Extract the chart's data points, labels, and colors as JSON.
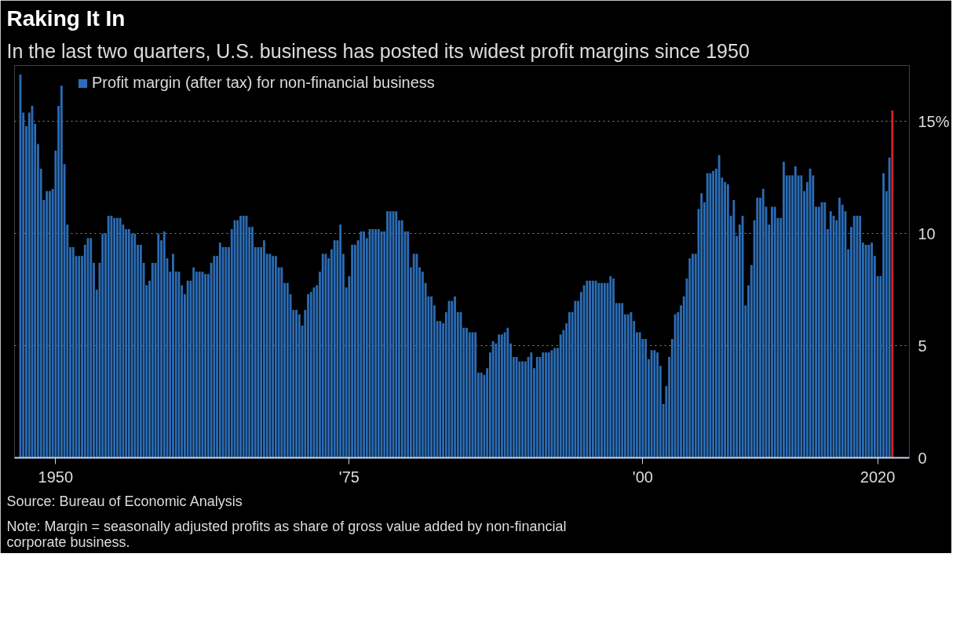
{
  "chart_data": {
    "type": "bar",
    "title": "Raking It In",
    "subtitle": "In the last two quarters, U.S. business has posted its widest profit margins since 1950",
    "annotations": [
      "Source: Bureau of Economic Analysis",
      "Note: Margin = seasonally adjusted profits as share of gross value added by non-financial corporate business."
    ],
    "xlim": [
      1946.5,
      2022.7
    ],
    "xticks": [
      {
        "value": 1950,
        "label": "1950"
      },
      {
        "value": 1975,
        "label": "'75"
      },
      {
        "value": 2000,
        "label": "'00"
      },
      2020
    ],
    "ylim": [
      0,
      17.5
    ],
    "yticks": [
      0,
      5,
      10,
      {
        "value": 15,
        "label": "15%"
      }
    ],
    "grid": "y",
    "legend": "top left",
    "series": [
      {
        "name": "Profit margin (after tax) for non-financial business",
        "color": "#2b6cb5",
        "x": [
          1947,
          1947.25,
          1947.5,
          1947.75,
          1948,
          1948.25,
          1948.5,
          1948.75,
          1949,
          1949.25,
          1949.5,
          1949.75,
          1950,
          1950.25,
          1950.5,
          1950.75,
          1951,
          1951.25,
          1951.5,
          1951.75,
          1952,
          1952.25,
          1952.5,
          1952.75,
          1953,
          1953.25,
          1953.5,
          1953.75,
          1954,
          1954.25,
          1954.5,
          1954.75,
          1955,
          1955.25,
          1955.5,
          1955.75,
          1956,
          1956.25,
          1956.5,
          1956.75,
          1957,
          1957.25,
          1957.5,
          1957.75,
          1958,
          1958.25,
          1958.5,
          1958.75,
          1959,
          1959.25,
          1959.5,
          1959.75,
          1960,
          1960.25,
          1960.5,
          1960.75,
          1961,
          1961.25,
          1961.5,
          1961.75,
          1962,
          1962.25,
          1962.5,
          1962.75,
          1963,
          1963.25,
          1963.5,
          1963.75,
          1964,
          1964.25,
          1964.5,
          1964.75,
          1965,
          1965.25,
          1965.5,
          1965.75,
          1966,
          1966.25,
          1966.5,
          1966.75,
          1967,
          1967.25,
          1967.5,
          1967.75,
          1968,
          1968.25,
          1968.5,
          1968.75,
          1969,
          1969.25,
          1969.5,
          1969.75,
          1970,
          1970.25,
          1970.5,
          1970.75,
          1971,
          1971.25,
          1971.5,
          1971.75,
          1972,
          1972.25,
          1972.5,
          1972.75,
          1973,
          1973.25,
          1973.5,
          1973.75,
          1974,
          1974.25,
          1974.5,
          1974.75,
          1975,
          1975.25,
          1975.5,
          1975.75,
          1976,
          1976.25,
          1976.5,
          1976.75,
          1977,
          1977.25,
          1977.5,
          1977.75,
          1978,
          1978.25,
          1978.5,
          1978.75,
          1979,
          1979.25,
          1979.5,
          1979.75,
          1980,
          1980.25,
          1980.5,
          1980.75,
          1981,
          1981.25,
          1981.5,
          1981.75,
          1982,
          1982.25,
          1982.5,
          1982.75,
          1983,
          1983.25,
          1983.5,
          1983.75,
          1984,
          1984.25,
          1984.5,
          1984.75,
          1985,
          1985.25,
          1985.5,
          1985.75,
          1986,
          1986.25,
          1986.5,
          1986.75,
          1987,
          1987.25,
          1987.5,
          1987.75,
          1988,
          1988.25,
          1988.5,
          1988.75,
          1989,
          1989.25,
          1989.5,
          1989.75,
          1990,
          1990.25,
          1990.5,
          1990.75,
          1991,
          1991.25,
          1991.5,
          1991.75,
          1992,
          1992.25,
          1992.5,
          1992.75,
          1993,
          1993.25,
          1993.5,
          1993.75,
          1994,
          1994.25,
          1994.5,
          1994.75,
          1995,
          1995.25,
          1995.5,
          1995.75,
          1996,
          1996.25,
          1996.5,
          1996.75,
          1997,
          1997.25,
          1997.5,
          1997.75,
          1998,
          1998.25,
          1998.5,
          1998.75,
          1999,
          1999.25,
          1999.5,
          1999.75,
          2000,
          2000.25,
          2000.5,
          2000.75,
          2001,
          2001.25,
          2001.5,
          2001.75,
          2002,
          2002.25,
          2002.5,
          2002.75,
          2003,
          2003.25,
          2003.5,
          2003.75,
          2004,
          2004.25,
          2004.5,
          2004.75,
          2005,
          2005.25,
          2005.5,
          2005.75,
          2006,
          2006.25,
          2006.5,
          2006.75,
          2007,
          2007.25,
          2007.5,
          2007.75,
          2008,
          2008.25,
          2008.5,
          2008.75,
          2009,
          2009.25,
          2009.5,
          2009.75,
          2010,
          2010.25,
          2010.5,
          2010.75,
          2011,
          2011.25,
          2011.5,
          2011.75,
          2012,
          2012.25,
          2012.5,
          2012.75,
          2013,
          2013.25,
          2013.5,
          2013.75,
          2014,
          2014.25,
          2014.5,
          2014.75,
          2015,
          2015.25,
          2015.5,
          2015.75,
          2016,
          2016.25,
          2016.5,
          2016.75,
          2017,
          2017.25,
          2017.5,
          2017.75,
          2018,
          2018.25,
          2018.5,
          2018.75,
          2019,
          2019.25,
          2019.5,
          2019.75,
          2020,
          2020.25,
          2020.5,
          2020.75,
          2021
        ],
        "values": [
          17.1,
          15.4,
          14.8,
          15.4,
          15.7,
          14.9,
          14.0,
          12.9,
          11.5,
          11.9,
          11.9,
          12.0,
          13.7,
          15.7,
          16.6,
          13.1,
          10.4,
          9.4,
          9.4,
          9.0,
          9.0,
          9.0,
          9.5,
          9.8,
          9.8,
          8.7,
          7.5,
          8.7,
          10.0,
          10.0,
          10.8,
          10.8,
          10.7,
          10.7,
          10.7,
          10.4,
          10.2,
          10.2,
          10.0,
          10.0,
          9.5,
          9.5,
          8.7,
          7.7,
          7.9,
          8.7,
          8.7,
          10.0,
          9.7,
          10.1,
          8.9,
          8.3,
          9.1,
          8.3,
          8.3,
          7.7,
          7.3,
          7.9,
          7.9,
          8.5,
          8.3,
          8.3,
          8.3,
          8.2,
          8.2,
          8.7,
          9.0,
          9.0,
          9.6,
          9.4,
          9.4,
          9.4,
          10.2,
          10.6,
          10.6,
          10.8,
          10.8,
          10.8,
          10.3,
          10.3,
          9.4,
          9.4,
          9.4,
          9.7,
          9.1,
          9.1,
          9.0,
          9.0,
          8.5,
          8.5,
          7.8,
          7.8,
          7.3,
          6.6,
          6.6,
          6.4,
          5.9,
          6.6,
          7.3,
          7.4,
          7.6,
          7.7,
          8.3,
          9.1,
          9.1,
          8.9,
          9.3,
          9.7,
          9.7,
          10.4,
          9.1,
          7.6,
          8.1,
          9.5,
          9.5,
          9.7,
          10.1,
          10.1,
          9.8,
          10.2,
          10.2,
          10.2,
          10.2,
          10.1,
          10.1,
          11.0,
          11.0,
          11.0,
          11.0,
          10.6,
          10.6,
          10.1,
          10.1,
          8.5,
          9.1,
          9.1,
          8.5,
          8.3,
          7.8,
          7.2,
          7.2,
          6.8,
          6.1,
          6.1,
          6.0,
          6.5,
          7.0,
          7.0,
          7.2,
          6.5,
          6.5,
          5.8,
          5.8,
          5.6,
          5.6,
          5.6,
          3.8,
          3.8,
          3.7,
          4.0,
          4.7,
          5.2,
          5.1,
          5.5,
          5.5,
          5.6,
          5.8,
          5.1,
          4.5,
          4.5,
          4.3,
          4.3,
          4.3,
          4.5,
          4.7,
          4.0,
          4.5,
          4.5,
          4.7,
          4.7,
          4.7,
          4.8,
          4.9,
          4.9,
          5.5,
          5.7,
          6.0,
          6.5,
          6.5,
          7.0,
          7.0,
          7.4,
          7.7,
          7.9,
          7.9,
          7.9,
          7.9,
          7.8,
          7.8,
          7.8,
          7.8,
          8.1,
          8.0,
          6.9,
          6.9,
          6.9,
          6.4,
          6.4,
          6.5,
          6.1,
          5.6,
          5.6,
          5.3,
          5.3,
          4.4,
          4.8,
          4.8,
          4.7,
          4.1,
          2.4,
          3.2,
          4.5,
          5.3,
          6.4,
          6.5,
          6.8,
          7.2,
          8.0,
          8.9,
          9.1,
          9.1,
          11.1,
          11.8,
          11.4,
          12.7,
          12.7,
          12.8,
          12.9,
          13.5,
          12.5,
          12.3,
          12.2,
          10.8,
          11.5,
          9.9,
          10.4,
          10.8,
          6.8,
          7.7,
          8.6,
          10.6,
          11.6,
          11.6,
          12.0,
          11.2,
          10.4,
          11.2,
          11.2,
          10.7,
          10.7,
          13.2,
          12.6,
          12.6,
          12.6,
          13.0,
          12.6,
          12.6,
          11.9,
          12.3,
          12.9,
          12.6,
          11.2,
          11.2,
          11.4,
          11.4,
          10.2,
          11.0,
          10.8,
          10.6,
          11.6,
          11.3,
          11.0,
          9.3,
          10.3,
          10.8,
          10.8,
          10.8,
          9.6,
          9.5,
          9.5,
          9.6,
          9.0,
          8.1,
          8.1,
          12.7,
          11.9,
          13.4
        ]
      },
      {
        "color": "#d3222a",
        "x": [
          2021.25
        ],
        "values": [
          15.5
        ]
      }
    ]
  }
}
